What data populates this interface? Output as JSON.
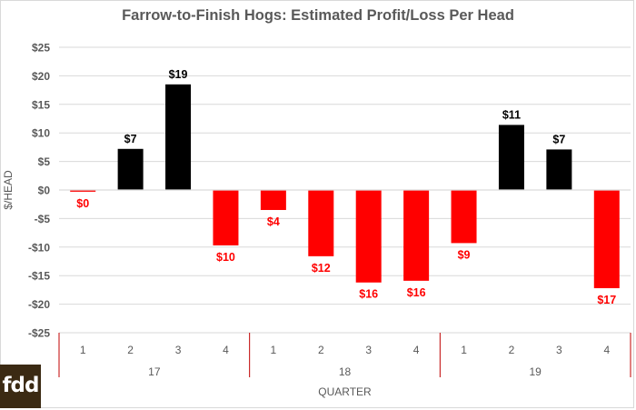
{
  "colors": {
    "positive": "#000000",
    "negative": "#ff0000",
    "logo_bg": "#3b2a13",
    "axis_text": "#595959"
  },
  "logo": {
    "text": "fdd"
  },
  "chart_data": {
    "type": "bar",
    "title": "Farrow-to-Finish Hogs: Estimated Profit/Loss Per Head",
    "xlabel": "QUARTER",
    "ylabel": "$/HEAD",
    "ylim": [
      -25,
      25
    ],
    "y_ticks": [
      25,
      20,
      15,
      10,
      5,
      0,
      -5,
      -10,
      -15,
      -20,
      -25
    ],
    "y_tick_labels": [
      "$25",
      "$20",
      "$15",
      "$10",
      "$5",
      "$0",
      "-$5",
      "-$10",
      "-$15",
      "-$20",
      "-$25"
    ],
    "categories": [
      "1",
      "2",
      "3",
      "4",
      "1",
      "2",
      "3",
      "4",
      "1",
      "2",
      "3",
      "4"
    ],
    "groups": [
      {
        "label": "17",
        "span": 4
      },
      {
        "label": "18",
        "span": 4
      },
      {
        "label": "19",
        "span": 4
      }
    ],
    "values": [
      -0.3,
      7.2,
      18.5,
      -9.7,
      -3.5,
      -11.6,
      -16.2,
      -15.9,
      -9.3,
      11.4,
      7.1,
      -17.2
    ],
    "data_labels": [
      "$0",
      "$7",
      "$19",
      "$10",
      "$4",
      "$12",
      "$16",
      "$16",
      "$9",
      "$11",
      "$7",
      "$17"
    ],
    "grid": "horizontal",
    "legend": "none"
  }
}
